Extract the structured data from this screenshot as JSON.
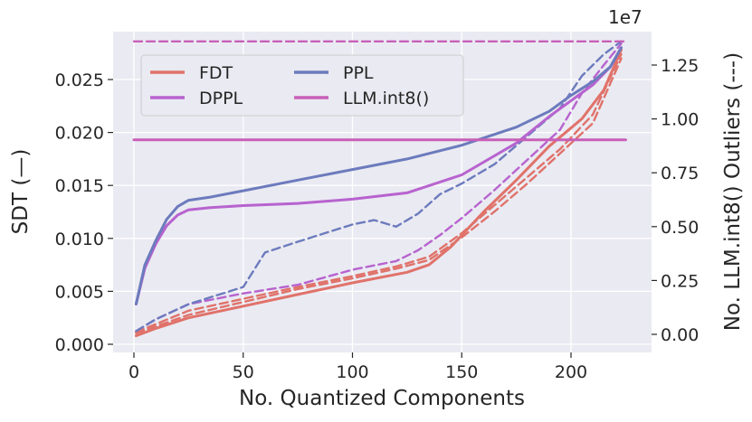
{
  "chart_data": {
    "type": "line",
    "title": "",
    "xlabel": "No. Quantized Components",
    "ylabel_left": "SDT (—)",
    "ylabel_right": "No. LLM.int8() Outliers (---)",
    "right_axis_multiplier": "1e7",
    "xlim": [
      0,
      225
    ],
    "ylim_left": [
      0,
      0.0285
    ],
    "ylim_right": [
      0,
      13600000
    ],
    "xticks": [
      "0",
      "50",
      "100",
      "150",
      "200"
    ],
    "yticks_left": [
      "0.000",
      "0.005",
      "0.010",
      "0.015",
      "0.020",
      "0.025"
    ],
    "yticks_right": [
      "0.00",
      "0.25",
      "0.50",
      "0.75",
      "1.00",
      "1.25"
    ],
    "grid": true,
    "legend_position": "top-left",
    "colors": {
      "FDT": "#e0726a",
      "DPPL": "#b763cf",
      "PPL": "#6c7bbd",
      "LLM.int8()": "#c85fb8",
      "background": "#eaeaf2",
      "grid": "#ffffff"
    },
    "legend": [
      {
        "label": "FDT",
        "color": "#e0726a"
      },
      {
        "label": "DPPL",
        "color": "#b763cf"
      },
      {
        "label": "PPL",
        "color": "#6c7bbd"
      },
      {
        "label": "LLM.int8()",
        "color": "#c85fb8"
      }
    ],
    "series": [
      {
        "name": "FDT",
        "axis": "left",
        "style": "solid",
        "x": [
          1,
          10,
          25,
          50,
          75,
          100,
          125,
          135,
          145,
          160,
          175,
          190,
          205,
          215,
          223
        ],
        "y": [
          0.0008,
          0.0015,
          0.0025,
          0.0036,
          0.0047,
          0.0058,
          0.0068,
          0.0075,
          0.0092,
          0.0125,
          0.0155,
          0.0187,
          0.0213,
          0.024,
          0.0278
        ]
      },
      {
        "name": "PPL",
        "axis": "left",
        "style": "solid",
        "x": [
          1,
          5,
          10,
          15,
          20,
          25,
          35,
          50,
          75,
          100,
          125,
          150,
          175,
          190,
          200,
          210,
          218,
          223
        ],
        "y": [
          0.0038,
          0.0075,
          0.0098,
          0.0118,
          0.013,
          0.0136,
          0.0139,
          0.0145,
          0.0155,
          0.0165,
          0.0175,
          0.0188,
          0.0205,
          0.022,
          0.0235,
          0.0248,
          0.0262,
          0.028
        ]
      },
      {
        "name": "DPPL",
        "axis": "left",
        "style": "solid",
        "x": [
          1,
          5,
          10,
          15,
          20,
          25,
          35,
          50,
          75,
          100,
          125,
          150,
          175,
          190,
          200,
          210,
          218,
          223
        ],
        "y": [
          0.0038,
          0.0072,
          0.0095,
          0.0112,
          0.0122,
          0.0127,
          0.0129,
          0.0131,
          0.0133,
          0.0137,
          0.0143,
          0.016,
          0.019,
          0.0215,
          0.023,
          0.0245,
          0.0262,
          0.028
        ]
      },
      {
        "name": "FDT outliers",
        "axis": "right",
        "style": "dashed",
        "x": [
          1,
          25,
          50,
          75,
          100,
          120,
          135,
          150,
          165,
          180,
          195,
          210,
          223
        ],
        "y": [
          100000,
          1100000,
          1650000,
          2200000,
          2700000,
          3150000,
          3600000,
          4700000,
          6000000,
          7300000,
          8600000,
          10200000,
          13000000
        ]
      },
      {
        "name": "FDT outliers (alt)",
        "axis": "right",
        "style": "dashed",
        "x": [
          1,
          25,
          50,
          75,
          100,
          120,
          135,
          150,
          165,
          180,
          195,
          210,
          223
        ],
        "y": [
          50000,
          900000,
          1500000,
          2100000,
          2600000,
          3050000,
          3450000,
          4500000,
          5700000,
          7000000,
          8400000,
          9800000,
          12800000
        ]
      },
      {
        "name": "DPPL outliers",
        "axis": "right",
        "style": "dashed",
        "x": [
          1,
          10,
          25,
          50,
          75,
          100,
          120,
          130,
          140,
          150,
          165,
          180,
          195,
          205,
          215,
          223
        ],
        "y": [
          150000,
          700000,
          1400000,
          1900000,
          2300000,
          3000000,
          3400000,
          3900000,
          4600000,
          5400000,
          6700000,
          8100000,
          9500000,
          11200000,
          12500000,
          13500000
        ]
      },
      {
        "name": "PPL outliers",
        "axis": "right",
        "style": "dashed",
        "x": [
          1,
          10,
          25,
          50,
          60,
          75,
          100,
          110,
          120,
          130,
          140,
          150,
          165,
          180,
          195,
          205,
          215,
          223
        ],
        "y": [
          150000,
          700000,
          1400000,
          2200000,
          3800000,
          4300000,
          5100000,
          5300000,
          5000000,
          5600000,
          6500000,
          7000000,
          7900000,
          9200000,
          10500000,
          12000000,
          13000000,
          13600000
        ]
      },
      {
        "name": "LLM.int8()",
        "axis": "left",
        "style": "solid",
        "x": [
          0,
          225
        ],
        "y": [
          0.0193,
          0.0193
        ]
      },
      {
        "name": "LLM.int8() outliers",
        "axis": "right",
        "style": "dashed",
        "x": [
          0,
          225
        ],
        "y": [
          13600000,
          13600000
        ]
      }
    ]
  }
}
